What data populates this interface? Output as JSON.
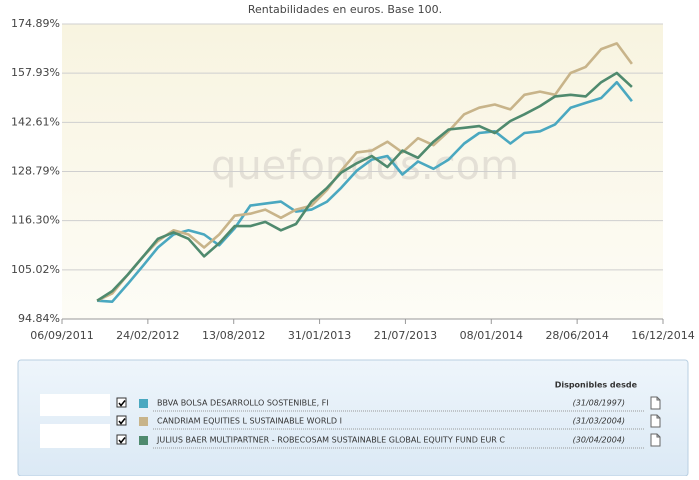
{
  "chart_data": {
    "type": "line",
    "title": "Rentabilidades en euros. Base 100.",
    "watermark": "quefondos.com",
    "x": [
      "15/11/2011",
      "15/12/2011",
      "15/01/2012",
      "15/02/2012",
      "15/03/2012",
      "15/04/2012",
      "15/05/2012",
      "15/06/2012",
      "15/07/2012",
      "15/08/2012",
      "15/09/2012",
      "15/10/2012",
      "15/11/2012",
      "15/12/2012",
      "15/01/2013",
      "15/02/2013",
      "15/03/2013",
      "15/04/2013",
      "15/05/2013",
      "15/06/2013",
      "15/07/2013",
      "15/08/2013",
      "15/09/2013",
      "15/10/2013",
      "15/11/2013",
      "15/12/2013",
      "15/01/2014",
      "15/02/2014",
      "15/03/2014",
      "15/04/2014",
      "15/05/2014",
      "15/06/2014",
      "15/07/2014",
      "15/08/2014",
      "15/09/2014",
      "15/10/2014"
    ],
    "xlim": [
      "06/09/2011",
      "16/12/2014"
    ],
    "xticks": [
      "06/09/2011",
      "24/02/2012",
      "13/08/2012",
      "31/01/2013",
      "21/07/2013",
      "08/01/2014",
      "28/06/2014",
      "16/12/2014"
    ],
    "ylim": [
      94.84,
      174.89
    ],
    "yscale": "log",
    "grid": true,
    "yticks": [
      {
        "value": 94.84,
        "label": "94.84%"
      },
      {
        "value": 105.02,
        "label": "105.02%"
      },
      {
        "value": 116.3,
        "label": "116.30%"
      },
      {
        "value": 128.79,
        "label": "128.79%"
      },
      {
        "value": 142.61,
        "label": "142.61%"
      },
      {
        "value": 157.93,
        "label": "157.93%"
      },
      {
        "value": 174.89,
        "label": "174.89%"
      }
    ],
    "legend_header": "Disponibles desde",
    "series": [
      {
        "name": "BBVA BOLSA DESARROLLO SOSTENIBLE, FI",
        "available_since": "(31/08/1997)",
        "color": "#4aa8c0",
        "values": [
          98.5,
          98.3,
          102,
          106,
          110,
          113,
          114,
          113,
          110.5,
          114.5,
          120,
          120.5,
          121,
          118.5,
          119,
          121,
          124.5,
          129,
          132,
          133,
          128,
          131.5,
          129.5,
          132,
          136.5,
          139.5,
          140,
          136.5,
          139.5,
          140,
          142,
          147,
          148.5,
          150,
          155,
          149
        ]
      },
      {
        "name": "CANDRIAM EQUITIES L SUSTAINABLE WORLD I",
        "available_since": "(31/03/2004)",
        "color": "#c8b48a",
        "values": [
          98.5,
          100,
          104,
          108,
          111.5,
          114,
          113,
          110,
          113,
          117.5,
          118,
          119,
          117,
          119,
          120,
          124,
          129,
          134,
          134.5,
          137,
          134,
          138,
          136,
          140,
          145,
          147,
          148,
          146.5,
          151,
          152,
          151,
          158,
          160,
          166,
          168,
          161
        ]
      },
      {
        "name": "JULIUS BAER MULTIPARTNER - ROBECOSAM SUSTAINABLE GLOBAL EQUITY FUND EUR C",
        "available_since": "(30/04/2004)",
        "color": "#4f8a6e",
        "values": [
          98.5,
          100.5,
          104,
          108,
          112,
          113.5,
          112,
          108,
          111,
          115,
          115,
          116,
          114,
          115.5,
          121,
          124.5,
          128.5,
          131,
          133,
          130,
          134.5,
          132.5,
          137,
          140.5,
          141,
          141.5,
          139.5,
          143,
          145,
          147.5,
          150.5,
          151,
          150.5,
          155,
          158,
          153.5
        ]
      }
    ]
  }
}
